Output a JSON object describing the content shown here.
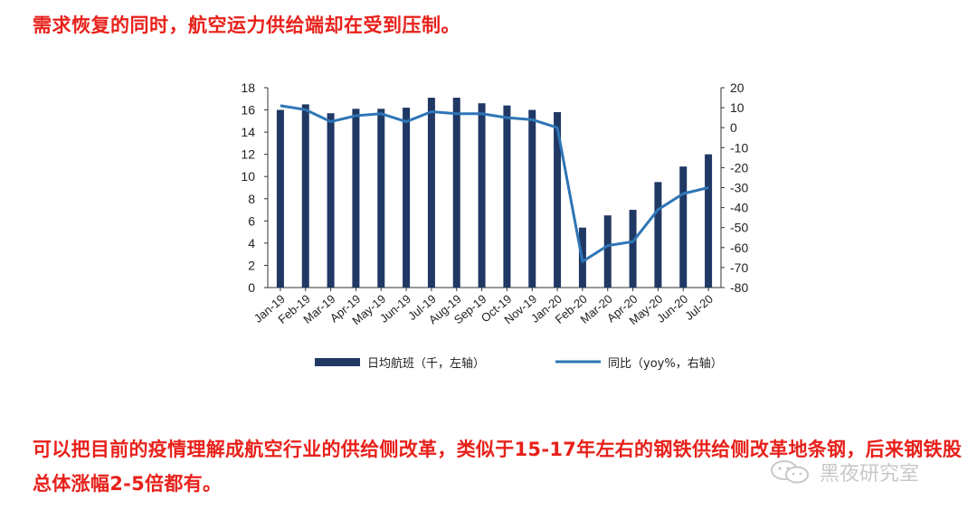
{
  "headline": "需求恢复的同时，航空运力供给端却在受到压制。",
  "body_text": "可以把目前的疫情理解成航空行业的供给侧改革，类似于15-17年左右的钢铁供给侧改革地条钢，后来钢铁股总体涨幅2-5倍都有。",
  "watermark": "黑夜研究室",
  "colors": {
    "text_accent": "#e8211b",
    "bar": "#1f3864",
    "line": "#2e75b6"
  },
  "chart_data": {
    "type": "bar+line",
    "categories": [
      "Jan-19",
      "Feb-19",
      "Mar-19",
      "Apr-19",
      "May-19",
      "Jun-19",
      "Jul-19",
      "Aug-19",
      "Sep-19",
      "Oct-19",
      "Nov-19",
      "Jan-20",
      "Feb-20",
      "Mar-20",
      "Apr-20",
      "May-20",
      "Jun-20",
      "Jul-20"
    ],
    "series": [
      {
        "name": "日均航班（千，左轴）",
        "kind": "bar",
        "axis": "left",
        "values": [
          16.0,
          16.5,
          15.7,
          16.1,
          16.1,
          16.2,
          17.1,
          17.1,
          16.6,
          16.4,
          16.0,
          15.8,
          5.4,
          6.5,
          7.0,
          9.5,
          10.9,
          12.0
        ]
      },
      {
        "name": "同比（yoy%，右轴）",
        "kind": "line",
        "axis": "right",
        "values": [
          11,
          9,
          3,
          6,
          7,
          3,
          8,
          7,
          7,
          5,
          4,
          0,
          -67,
          -59,
          -57,
          -41,
          -33,
          -30
        ]
      }
    ],
    "y_left": {
      "min": 0,
      "max": 18,
      "ticks": [
        "0",
        "2",
        "4",
        "6",
        "8",
        "10",
        "12",
        "14",
        "16",
        "18"
      ]
    },
    "y_right": {
      "min": -80,
      "max": 20,
      "ticks": [
        "-80",
        "-70",
        "-60",
        "-50",
        "-40",
        "-30",
        "-20",
        "-10",
        "0",
        "10",
        "20"
      ]
    },
    "legend_position": "bottom",
    "grid": false
  }
}
